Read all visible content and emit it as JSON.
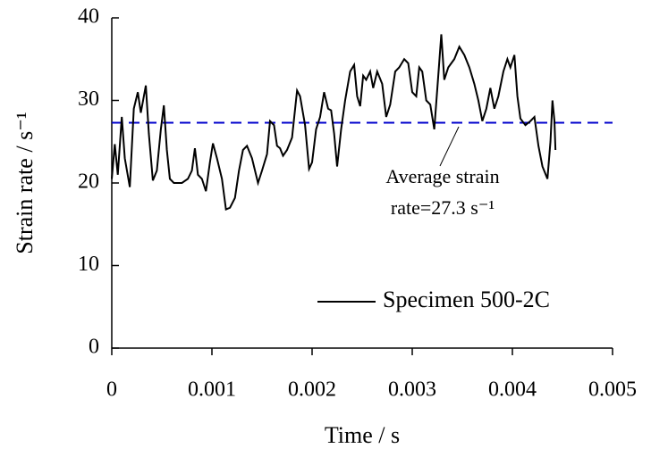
{
  "chart_data": {
    "type": "line",
    "xlabel": "Time / s",
    "ylabel": "Strain rate / s⁻¹",
    "xlim": [
      0,
      0.005
    ],
    "xticks": [
      0,
      0.001,
      0.002,
      0.003,
      0.004,
      0.005
    ],
    "ylim": [
      0,
      40
    ],
    "yticks": [
      0,
      10,
      20,
      30,
      40
    ],
    "legend": "lower right",
    "x": [
      0,
      3e-05,
      6e-05,
      0.0001,
      0.00013,
      0.00018,
      0.00022,
      0.00026,
      0.00029,
      0.00034,
      0.00037,
      0.00041,
      0.00045,
      0.00049,
      0.00052,
      0.00055,
      0.00058,
      0.00062,
      0.0007,
      0.00076,
      0.0008,
      0.00083,
      0.00086,
      0.0009,
      0.00094,
      0.00098,
      0.00101,
      0.00105,
      0.0011,
      0.00114,
      0.00118,
      0.00123,
      0.00127,
      0.00131,
      0.00135,
      0.0014,
      0.00146,
      0.0015,
      0.00155,
      0.00158,
      0.00162,
      0.00165,
      0.00168,
      0.00171,
      0.00175,
      0.0018,
      0.00185,
      0.00188,
      0.00193,
      0.00197,
      0.002,
      0.00204,
      0.00208,
      0.00212,
      0.00216,
      0.00219,
      0.00222,
      0.00225,
      0.00229,
      0.00233,
      0.00238,
      0.00242,
      0.00245,
      0.00248,
      0.00251,
      0.00254,
      0.00258,
      0.00261,
      0.00265,
      0.0027,
      0.00274,
      0.00278,
      0.00283,
      0.00287,
      0.00292,
      0.00296,
      0.003,
      0.00304,
      0.00307,
      0.0031,
      0.00314,
      0.00318,
      0.00322,
      0.00326,
      0.00329,
      0.00332,
      0.00336,
      0.00342,
      0.00347,
      0.00352,
      0.00357,
      0.00362,
      0.00366,
      0.0037,
      0.00374,
      0.00378,
      0.00382,
      0.00386,
      0.00391,
      0.00395,
      0.00398,
      0.00402,
      0.00405,
      0.00408,
      0.00413,
      0.00418,
      0.00422,
      0.00426,
      0.0043,
      0.00435,
      0.00438,
      0.0044,
      0.00442,
      0.00443
    ],
    "series": [
      {
        "name": "Specimen 500-2C",
        "color": "#000000",
        "values": [
          20.5,
          24.7,
          21.0,
          28.0,
          23.0,
          19.5,
          29.0,
          31.0,
          28.5,
          31.8,
          26.0,
          20.3,
          21.5,
          26.5,
          29.4,
          24.0,
          20.5,
          20.0,
          20.0,
          20.5,
          21.5,
          24.2,
          21.0,
          20.5,
          19.0,
          22.5,
          24.8,
          23.0,
          20.5,
          16.8,
          17.0,
          18.2,
          21.5,
          24.0,
          24.5,
          23.0,
          20.0,
          21.5,
          23.5,
          27.5,
          27.0,
          24.5,
          24.2,
          23.3,
          24.0,
          25.5,
          31.2,
          30.5,
          27.0,
          21.7,
          22.5,
          26.5,
          28.0,
          31.0,
          29.0,
          28.8,
          26.0,
          22.0,
          26.5,
          30.0,
          33.5,
          34.3,
          30.5,
          29.3,
          33.0,
          32.5,
          33.5,
          31.5,
          33.5,
          32.0,
          28.0,
          29.5,
          33.5,
          34.0,
          35.0,
          34.5,
          31.0,
          30.5,
          34.0,
          33.5,
          30.0,
          29.5,
          26.5,
          33.0,
          38.0,
          32.5,
          34.0,
          35.0,
          36.5,
          35.5,
          34.0,
          32.0,
          30.0,
          27.5,
          29.0,
          31.5,
          29.0,
          30.5,
          33.5,
          35.0,
          34.0,
          35.5,
          30.5,
          27.8,
          27.0,
          27.5,
          28.0,
          24.5,
          22.0,
          20.5,
          25.0,
          30.0,
          27.5,
          24.0
        ]
      }
    ],
    "reference_line": {
      "value": 27.3,
      "color": "#0000cc"
    },
    "annotation": [
      "Average strain",
      "rate=27.3 s⁻¹"
    ]
  }
}
